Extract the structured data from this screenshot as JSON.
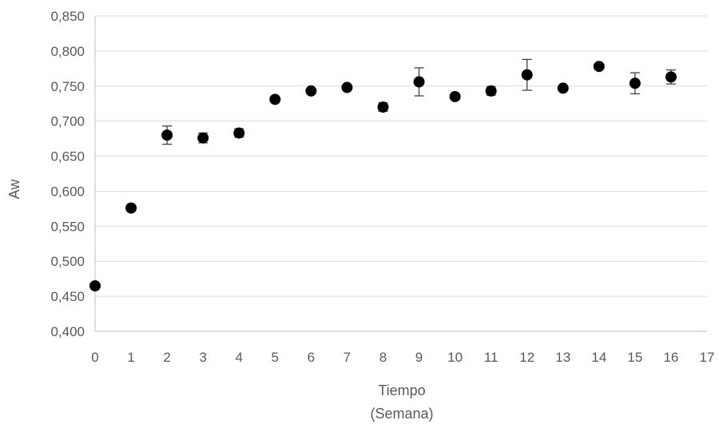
{
  "chart_data": {
    "type": "scatter",
    "title": "",
    "xlabel_lines": [
      "Tiempo",
      "(Semana)"
    ],
    "ylabel": "Aw",
    "xlim": [
      0,
      17
    ],
    "ylim": [
      0.4,
      0.85
    ],
    "x_ticks": [
      "0",
      "1",
      "2",
      "3",
      "4",
      "5",
      "6",
      "7",
      "8",
      "9",
      "10",
      "11",
      "12",
      "13",
      "14",
      "15",
      "16",
      "17"
    ],
    "y_ticks": [
      "0,400",
      "0,450",
      "0,500",
      "0,550",
      "0,600",
      "0,650",
      "0,700",
      "0,750",
      "0,800",
      "0,850"
    ],
    "grid": true,
    "legend": "none",
    "marker_color": "#000000",
    "errorbar_color": "#404040",
    "series": [
      {
        "x": [
          0,
          1,
          2,
          3,
          4,
          5,
          6,
          7,
          8,
          9,
          10,
          11,
          12,
          13,
          14,
          15,
          16
        ],
        "y": [
          0.465,
          0.576,
          0.68,
          0.676,
          0.683,
          0.731,
          0.743,
          0.748,
          0.72,
          0.756,
          0.735,
          0.743,
          0.766,
          0.747,
          0.778,
          0.754,
          0.763
        ],
        "error": [
          0.0,
          0.0,
          0.013,
          0.007,
          0.006,
          0.0,
          0.0,
          0.0,
          0.006,
          0.02,
          0.0,
          0.006,
          0.022,
          0.0,
          0.0,
          0.015,
          0.01
        ]
      }
    ]
  }
}
